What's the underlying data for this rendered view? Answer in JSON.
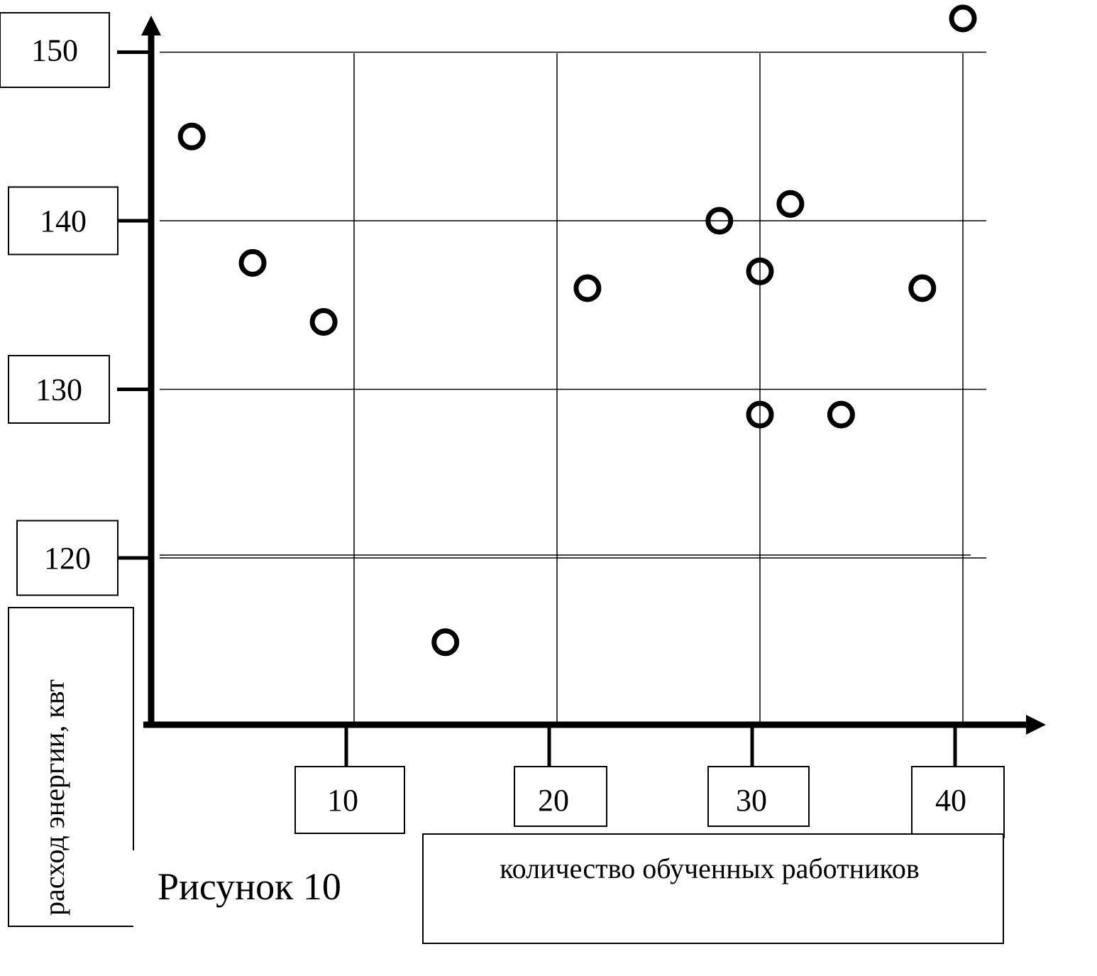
{
  "caption": "Рисунок 10",
  "chart_data": {
    "type": "scatter",
    "xlabel": "количество обученных работников",
    "ylabel": "расход  энергии, квт",
    "xticks": [
      "10",
      "20",
      "30",
      "40"
    ],
    "yticks": [
      "120",
      "130",
      "140",
      "150"
    ],
    "xlim": [
      0,
      44
    ],
    "ylim": [
      110,
      151
    ],
    "grid": true,
    "points": [
      {
        "x": 2,
        "y": 145
      },
      {
        "x": 5,
        "y": 137.5
      },
      {
        "x": 8.5,
        "y": 134
      },
      {
        "x": 14.5,
        "y": 115
      },
      {
        "x": 21.5,
        "y": 136
      },
      {
        "x": 28,
        "y": 140
      },
      {
        "x": 30,
        "y": 137
      },
      {
        "x": 31.5,
        "y": 141
      },
      {
        "x": 30,
        "y": 128.5
      },
      {
        "x": 34,
        "y": 128.5
      },
      {
        "x": 38,
        "y": 136
      },
      {
        "x": 40,
        "y": 152
      }
    ],
    "colors": {
      "ink": "#000000",
      "background": "#ffffff"
    }
  }
}
